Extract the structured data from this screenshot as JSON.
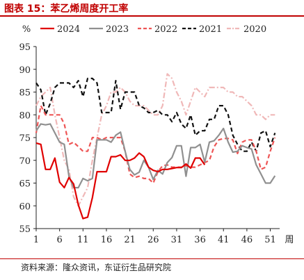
{
  "header": {
    "title": "图表 15：苯乙烯周度开工率"
  },
  "footer": {
    "source": "资料来源：隆众资讯，东证衍生品研究院"
  },
  "chart_data": {
    "type": "line",
    "title": "图表 15：苯乙烯周度开工率",
    "ylabel": "%",
    "xlabel": "周",
    "xlim": [
      1,
      53
    ],
    "ylim": [
      55,
      95
    ],
    "yticks": [
      55,
      60,
      65,
      70,
      75,
      80,
      85,
      90,
      95
    ],
    "xticks": [
      1,
      6,
      11,
      16,
      21,
      26,
      31,
      36,
      41,
      46,
      51
    ],
    "legend_position": "top",
    "grid": false,
    "series": [
      {
        "name": "2024",
        "color": "#e00000",
        "dash": "solid",
        "x": [
          1,
          2,
          3,
          4,
          5,
          6,
          7,
          8,
          9,
          10,
          11,
          12,
          13,
          14,
          15,
          16,
          17,
          18,
          19,
          20,
          21,
          22,
          23,
          24,
          25,
          26,
          27,
          28,
          29,
          30,
          31,
          32,
          33,
          34,
          35,
          36,
          37
        ],
        "values": [
          73.8,
          73.5,
          68,
          68,
          70.5,
          65.2,
          64,
          66.2,
          64.8,
          60.2,
          57.2,
          57.5,
          61.8,
          67.5,
          67.5,
          67.5,
          70.8,
          70.8,
          71.2,
          70,
          70,
          70.5,
          71.6,
          70.8,
          68.5,
          67.8,
          67.5,
          68,
          68,
          68.2,
          68.4,
          68.4,
          69.2,
          68.3,
          70.5,
          70.5,
          69
        ]
      },
      {
        "name": "2023",
        "color": "#909090",
        "dash": "solid",
        "x": [
          1,
          2,
          3,
          4,
          5,
          6,
          7,
          8,
          9,
          10,
          11,
          12,
          13,
          14,
          15,
          16,
          17,
          18,
          19,
          20,
          21,
          22,
          23,
          24,
          25,
          26,
          27,
          28,
          29,
          30,
          31,
          32,
          33,
          34,
          35,
          36,
          37,
          38,
          39,
          40,
          41,
          42,
          43,
          44,
          45,
          46,
          47,
          48,
          49,
          50,
          51,
          52
        ],
        "values": [
          76.5,
          78,
          77.8,
          78,
          76,
          74,
          73.5,
          66.5,
          64,
          64,
          66,
          65.5,
          66,
          74.5,
          74.5,
          74.5,
          74,
          75.5,
          76.2,
          72,
          68,
          66.8,
          67.4,
          70,
          68.5,
          65.8,
          67.8,
          67,
          69.5,
          70.6,
          73.2,
          73.2,
          66.5,
          72.8,
          72.8,
          73.5,
          69.6,
          74,
          74.3,
          75.5,
          77,
          74,
          71.8,
          72,
          73.2,
          72.8,
          72.5,
          69,
          67,
          65,
          65,
          66.6
        ]
      },
      {
        "name": "2022",
        "color": "#ee5555",
        "dash": "6,4",
        "x": [
          1,
          2,
          3,
          4,
          5,
          6,
          7,
          8,
          9,
          10,
          11,
          12,
          13,
          14,
          15,
          16,
          17,
          18,
          19,
          20,
          21,
          22,
          23,
          24,
          25,
          26,
          27,
          28,
          29,
          30,
          31,
          32,
          33,
          34,
          35,
          36,
          37,
          38,
          39,
          40,
          41,
          42,
          43,
          44,
          45,
          46,
          47,
          48,
          49,
          50,
          51,
          52
        ],
        "values": [
          76,
          82,
          80,
          80,
          80,
          80,
          78,
          73.5,
          74,
          73,
          72,
          72,
          75,
          75,
          74.5,
          75,
          75,
          75,
          75,
          72,
          67,
          66.2,
          66.5,
          66,
          66,
          65,
          67.5,
          68.8,
          69,
          68.5,
          68.5,
          68.5,
          68.8,
          68.5,
          68.5,
          69,
          69.5,
          70,
          73,
          74.5,
          74.8,
          74.8,
          74.5,
          71.5,
          74,
          74.5,
          74.5,
          72,
          68,
          68.5,
          72,
          75
        ]
      },
      {
        "name": "2021",
        "color": "#111111",
        "dash": "6,4",
        "x": [
          1,
          2,
          3,
          4,
          5,
          6,
          7,
          8,
          9,
          10,
          11,
          12,
          13,
          14,
          15,
          16,
          17,
          18,
          19,
          20,
          21,
          22,
          23,
          24,
          25,
          26,
          27,
          28,
          29,
          30,
          31,
          32,
          33,
          34,
          35,
          36,
          37,
          38,
          39,
          40,
          41,
          42,
          43,
          44,
          45,
          46,
          47,
          48,
          49,
          50,
          51,
          52
        ],
        "values": [
          87,
          85.5,
          80,
          82.5,
          86,
          87,
          87,
          87,
          86,
          87.5,
          84,
          88,
          88,
          87,
          80.5,
          80.5,
          80.5,
          87.5,
          81.2,
          85,
          85,
          85,
          82,
          81.5,
          80.5,
          80.5,
          81,
          80,
          80,
          78.5,
          80.5,
          78,
          77,
          80,
          75.5,
          76.5,
          76.5,
          79,
          79,
          82,
          82,
          80,
          75.5,
          73.5,
          72,
          72,
          74,
          72,
          76,
          76.5,
          73,
          76
        ]
      },
      {
        "name": "2020",
        "color": "#f0b8b8",
        "dash": "8,3,2,3",
        "x": [
          1,
          2,
          3,
          4,
          5,
          6,
          7,
          8,
          9,
          10,
          11,
          12,
          13,
          14,
          15,
          16,
          17,
          18,
          19,
          20,
          21,
          22,
          23,
          24,
          25,
          26,
          27,
          28,
          29,
          30,
          31,
          32,
          33,
          34,
          35,
          36,
          37,
          38,
          39,
          40,
          41,
          42,
          43,
          44,
          45,
          46,
          47,
          48,
          49,
          50,
          51,
          52
        ],
        "values": [
          82,
          84,
          85,
          86,
          80,
          75,
          70,
          68,
          62,
          60,
          62,
          64,
          70,
          75,
          80,
          82,
          85,
          85,
          86,
          85,
          83,
          82,
          82,
          82,
          81,
          80,
          80,
          82,
          89,
          88,
          85,
          83,
          80,
          83,
          86,
          85,
          84,
          86,
          86,
          86,
          86,
          85,
          85,
          84,
          84,
          83,
          82,
          80,
          80,
          79,
          80,
          80
        ]
      }
    ]
  }
}
